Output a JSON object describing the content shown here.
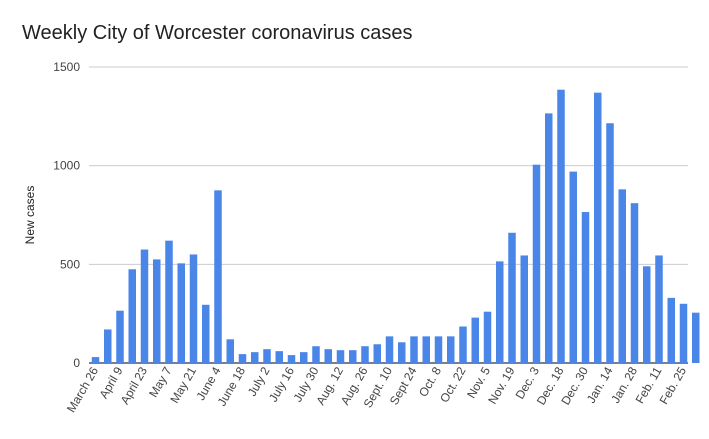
{
  "chart_data": {
    "type": "bar",
    "title": "Weekly City of Worcester coronavirus cases",
    "xlabel": "",
    "ylabel": "New cases",
    "ylim": [
      0,
      1500
    ],
    "yticks": [
      0,
      500,
      1000,
      1500
    ],
    "grid": true,
    "bar_color": "#4a86e8",
    "x_tick_labels": [
      "March 26",
      "April 9",
      "April 23",
      "May 7",
      "May 21",
      "June 4",
      "June 18",
      "July 2",
      "July 16",
      "July 30",
      "Aug. 12",
      "Aug. 26",
      "Sept. 10",
      "Sept 24",
      "Oct. 8",
      "Oct. 22",
      "Nov. 5",
      "Nov. 19",
      "Dec. 3",
      "Dec. 18",
      "Dec. 30",
      "Jan. 14",
      "Jan. 28",
      "Feb. 11",
      "Feb. 25"
    ],
    "x_tick_label_every": 2,
    "values": [
      30,
      170,
      265,
      475,
      575,
      525,
      620,
      505,
      550,
      295,
      875,
      120,
      45,
      55,
      70,
      60,
      40,
      55,
      85,
      70,
      65,
      65,
      85,
      95,
      135,
      105,
      135,
      135,
      135,
      135,
      185,
      230,
      260,
      515,
      660,
      545,
      1005,
      1265,
      1385,
      970,
      765,
      1370,
      1215,
      880,
      810,
      490,
      545,
      330,
      300,
      255
    ]
  }
}
